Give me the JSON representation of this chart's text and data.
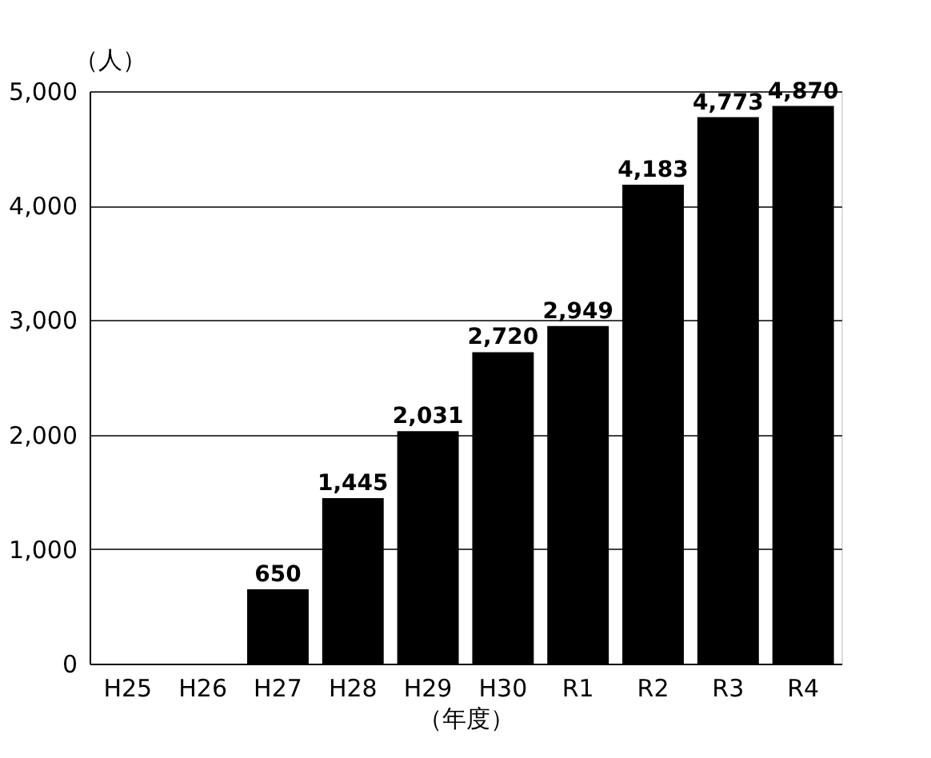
{
  "chart_data": {
    "type": "bar",
    "categories": [
      "H25",
      "H26",
      "H27",
      "H28",
      "H29",
      "H30",
      "R1",
      "R2",
      "R3",
      "R4"
    ],
    "values": [
      null,
      null,
      650,
      1445,
      2031,
      2720,
      2949,
      4183,
      4773,
      4870
    ],
    "color": "#000000",
    "value_labels": [
      null,
      null,
      "650",
      "1,445",
      "2,031",
      "2,720",
      "2,949",
      "4,183",
      "4,773",
      "4,870"
    ],
    "xlabel": "（年度）",
    "ylabel": "（人）",
    "ylim": [
      0,
      5000
    ],
    "yticks": [
      {
        "value": 0,
        "label": "0"
      },
      {
        "value": 1000,
        "label": "1,000"
      },
      {
        "value": 2000,
        "label": "2,000"
      },
      {
        "value": 3000,
        "label": "3,000"
      },
      {
        "value": 4000,
        "label": "4,000"
      },
      {
        "value": 5000,
        "label": "5,000"
      }
    ],
    "grid": "y"
  }
}
